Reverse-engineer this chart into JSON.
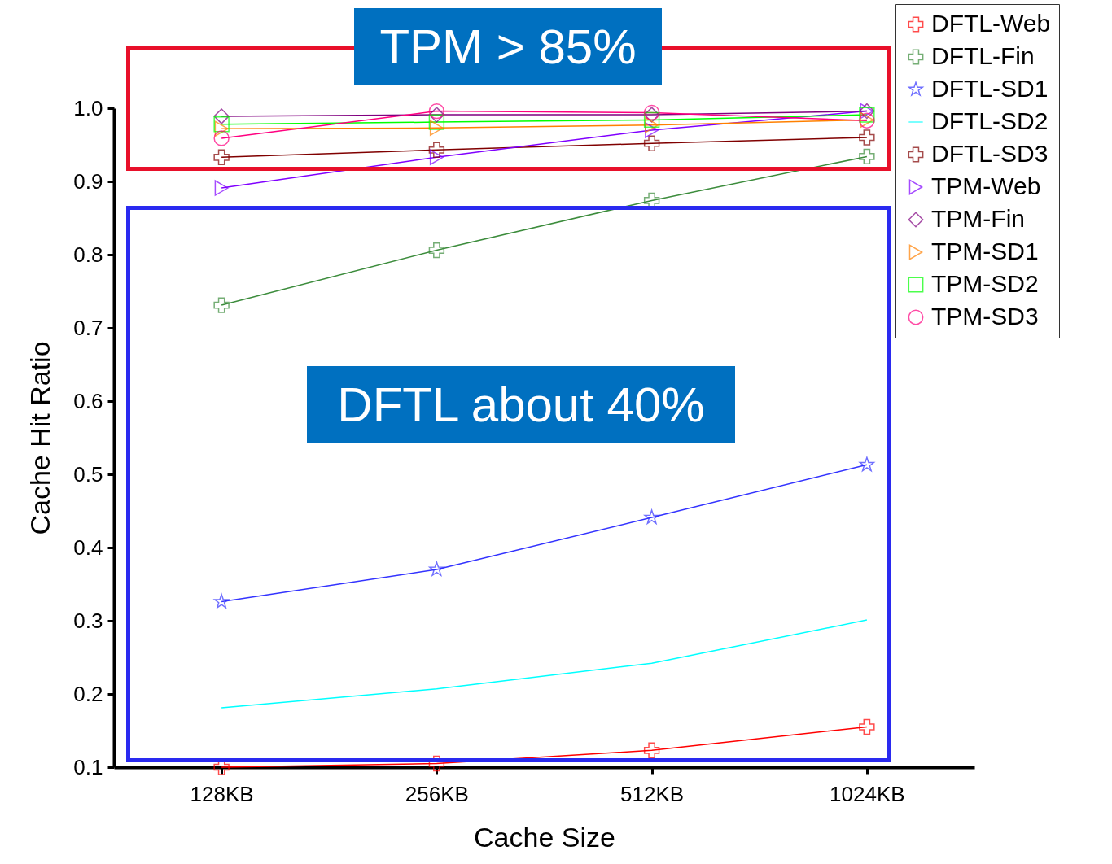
{
  "chart_data": {
    "type": "line",
    "xlabel": "Cache Size",
    "ylabel": "Cache Hit Ratio",
    "categories": [
      "128KB",
      "256KB",
      "512KB",
      "1024KB"
    ],
    "ylim": [
      0.1,
      1.0
    ],
    "yticks": [
      {
        "value": 0.1,
        "label": "0.1"
      },
      {
        "value": 0.2,
        "label": "0.2"
      },
      {
        "value": 0.3,
        "label": "0.3"
      },
      {
        "value": 0.4,
        "label": "0.4"
      },
      {
        "value": 0.5,
        "label": "0.5"
      },
      {
        "value": 0.6,
        "label": "0.6"
      },
      {
        "value": 0.7,
        "label": "0.7"
      },
      {
        "value": 0.8,
        "label": "0.8"
      },
      {
        "value": 0.9,
        "label": "0.9"
      },
      {
        "value": 1.0,
        "label": "1.0"
      }
    ],
    "grid": false,
    "legend": "top right",
    "line_style": "solid",
    "annotations": [
      "TPM > 85%",
      "DFTL about 40%"
    ],
    "series": [
      {
        "name": "DFTL-Web",
        "color": "#ff0000",
        "marker": "cross",
        "values": [
          0.1,
          0.105,
          0.123,
          0.155
        ]
      },
      {
        "name": "DFTL-Fin",
        "color": "#3c8c3c",
        "marker": "cross",
        "values": [
          0.731,
          0.806,
          0.874,
          0.934
        ]
      },
      {
        "name": "DFTL-SD1",
        "color": "#3333ff",
        "marker": "star",
        "values": [
          0.326,
          0.37,
          0.441,
          0.513
        ]
      },
      {
        "name": "DFTL-SD2",
        "color": "#00ffff",
        "marker": "none",
        "values": [
          0.181,
          0.207,
          0.242,
          0.301
        ]
      },
      {
        "name": "DFTL-SD3",
        "color": "#800000",
        "marker": "cross",
        "values": [
          0.933,
          0.943,
          0.952,
          0.96
        ]
      },
      {
        "name": "TPM-Web",
        "color": "#8000ff",
        "marker": "triangle",
        "values": [
          0.891,
          0.933,
          0.97,
          0.996
        ]
      },
      {
        "name": "TPM-Fin",
        "color": "#800080",
        "marker": "diamond",
        "values": [
          0.989,
          0.991,
          0.991,
          0.996
        ]
      },
      {
        "name": "TPM-SD1",
        "color": "#ff8000",
        "marker": "triangle",
        "values": [
          0.972,
          0.973,
          0.977,
          0.984
        ]
      },
      {
        "name": "TPM-SD2",
        "color": "#00ff00",
        "marker": "square",
        "values": [
          0.978,
          0.981,
          0.984,
          0.991
        ]
      },
      {
        "name": "TPM-SD3",
        "color": "#ff0080",
        "marker": "circle",
        "values": [
          0.959,
          0.996,
          0.994,
          0.983
        ]
      }
    ]
  }
}
